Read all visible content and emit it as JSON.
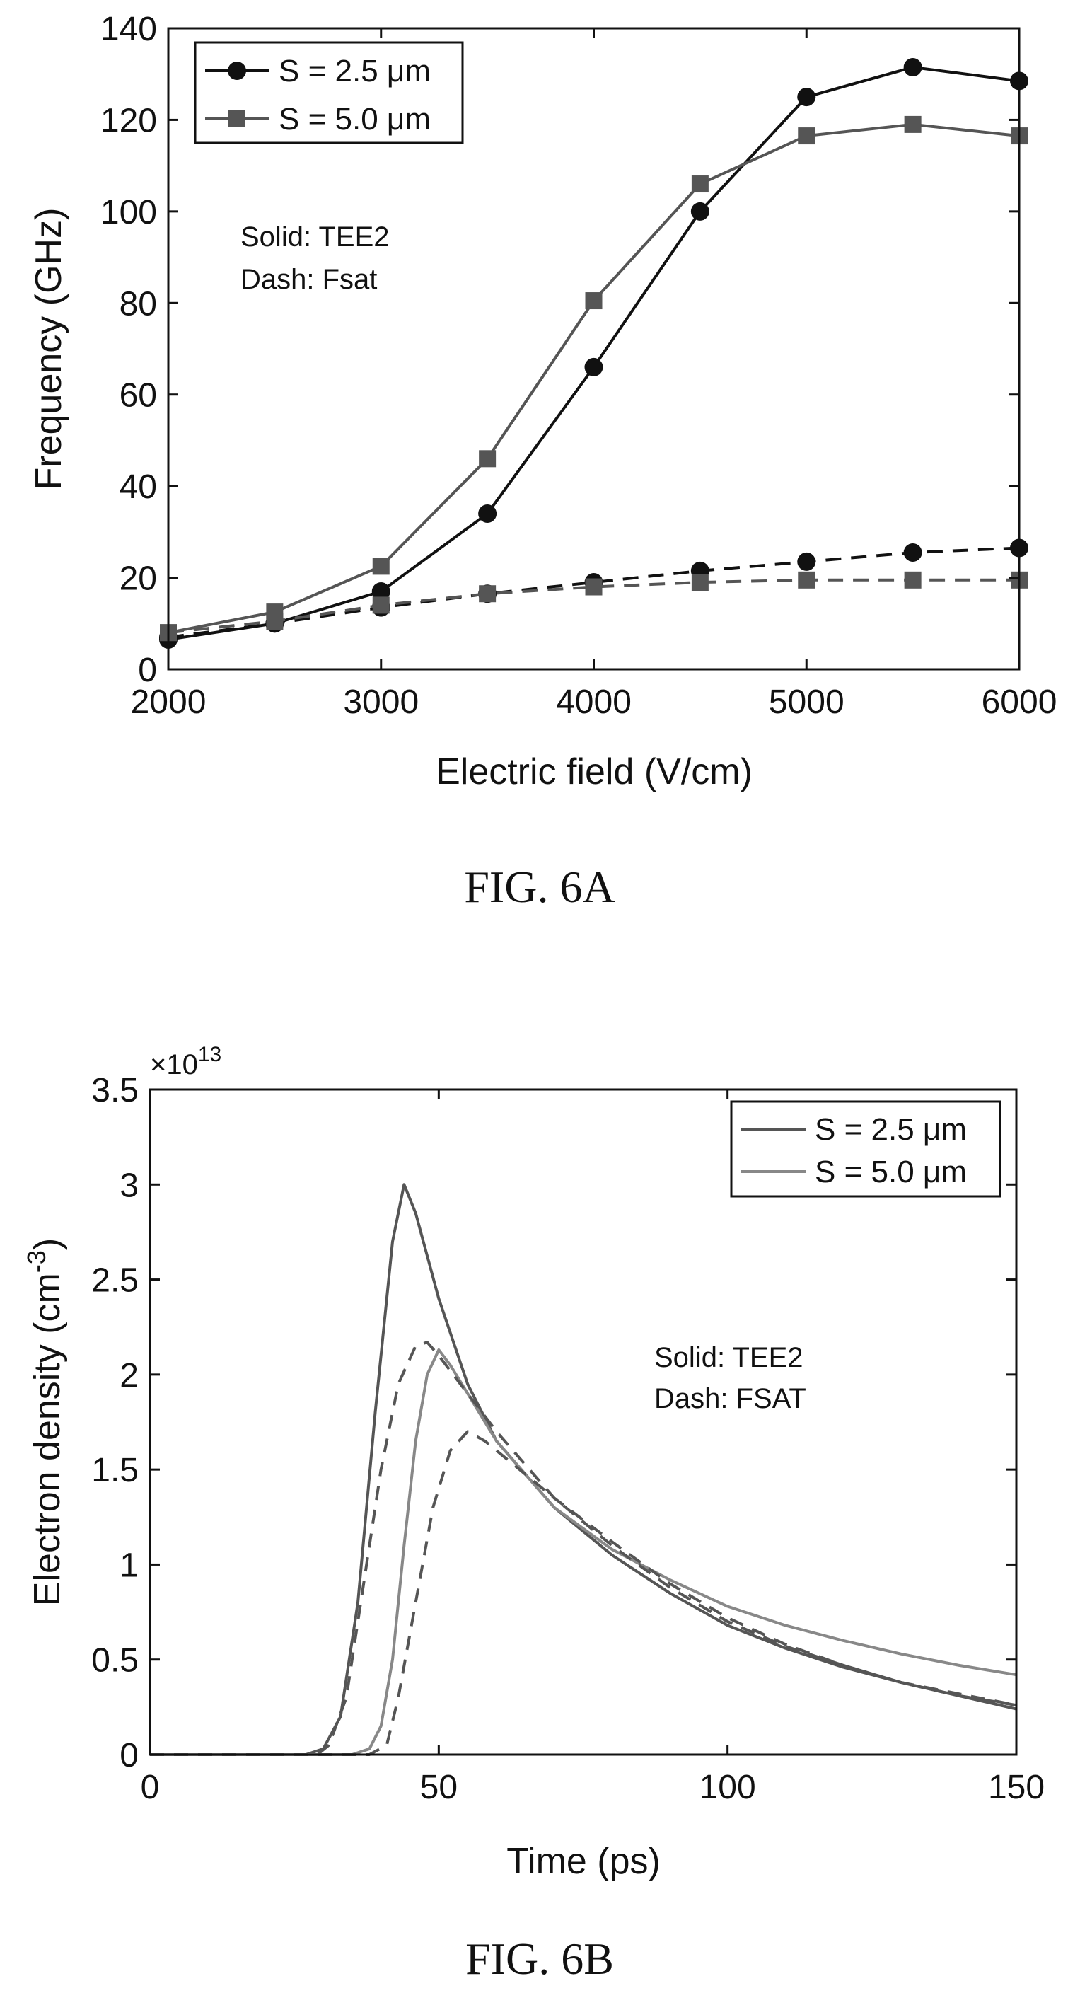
{
  "chart_data": [
    {
      "type": "line",
      "caption": "FIG. 6A",
      "xlabel": "Electric field (V/cm)",
      "ylabel": "Frequency (GHz)",
      "xlim": [
        2000,
        6000
      ],
      "ylim": [
        0,
        140
      ],
      "xticks": [
        "2000",
        "3000",
        "4000",
        "5000",
        "6000"
      ],
      "yticks": [
        "0",
        "20",
        "40",
        "60",
        "80",
        "100",
        "120",
        "140"
      ],
      "x": [
        2000,
        2500,
        3000,
        3500,
        4000,
        4500,
        5000,
        5500,
        6000
      ],
      "annotations": [
        "Solid: TEE2",
        "Dash: Fsat"
      ],
      "legend_position": "top-left",
      "series": [
        {
          "name": "S = 2.5 μm",
          "style": "solid",
          "marker": "circle",
          "color": "#111111",
          "values": [
            6.5,
            10,
            17,
            34,
            66,
            100,
            125,
            131.5,
            128.5
          ]
        },
        {
          "name": "S = 5.0 μm",
          "style": "solid",
          "marker": "square",
          "color": "#555555",
          "values": [
            8,
            12.5,
            22.5,
            46,
            80.5,
            106,
            116.5,
            119,
            116.5
          ]
        },
        {
          "name": "",
          "style": "dash",
          "marker": "circle",
          "color": "#111111",
          "values": [
            7,
            10,
            13.5,
            16.5,
            19,
            21.5,
            23.5,
            25.5,
            26.5
          ]
        },
        {
          "name": "",
          "style": "dash",
          "marker": "square",
          "color": "#555555",
          "values": [
            8,
            10.5,
            14,
            16.5,
            18,
            19,
            19.5,
            19.5,
            19.5
          ]
        }
      ]
    },
    {
      "type": "line",
      "caption": "FIG. 6B",
      "xlabel": "Time (ps)",
      "ylabel": "Electron density (cm",
      "ylabel_sup": "-3",
      "ylabel_close": ")",
      "exponent_base": "×10",
      "exponent_power": "13",
      "xlim": [
        0,
        150
      ],
      "ylim": [
        0,
        3.5
      ],
      "xticks": [
        "0",
        "50",
        "100",
        "150"
      ],
      "yticks": [
        "0",
        "0.5",
        "1",
        "1.5",
        "2",
        "2.5",
        "3",
        "3.5"
      ],
      "annotations": [
        "Solid: TEE2",
        "Dash: FSAT"
      ],
      "legend_position": "top-right",
      "legend": [
        {
          "name": "S = 2.5 μm",
          "color": "#555555"
        },
        {
          "name": "S = 5.0 μm",
          "color": "#888888"
        }
      ],
      "series": [
        {
          "name": "S = 2.5 μm",
          "style": "solid",
          "color": "#555555",
          "points": [
            [
              0,
              0
            ],
            [
              27,
              0
            ],
            [
              30,
              0.03
            ],
            [
              33,
              0.2
            ],
            [
              36,
              0.8
            ],
            [
              39,
              1.8
            ],
            [
              42,
              2.7
            ],
            [
              44,
              3.0
            ],
            [
              46,
              2.85
            ],
            [
              50,
              2.4
            ],
            [
              55,
              1.95
            ],
            [
              60,
              1.65
            ],
            [
              70,
              1.3
            ],
            [
              80,
              1.05
            ],
            [
              90,
              0.85
            ],
            [
              100,
              0.68
            ],
            [
              110,
              0.56
            ],
            [
              120,
              0.46
            ],
            [
              130,
              0.38
            ],
            [
              140,
              0.31
            ],
            [
              150,
              0.24
            ]
          ]
        },
        {
          "name": "S = 5.0 μm",
          "style": "solid",
          "color": "#888888",
          "points": [
            [
              0,
              0
            ],
            [
              35,
              0
            ],
            [
              38,
              0.03
            ],
            [
              40,
              0.15
            ],
            [
              42,
              0.5
            ],
            [
              44,
              1.1
            ],
            [
              46,
              1.65
            ],
            [
              48,
              2.0
            ],
            [
              50,
              2.13
            ],
            [
              52,
              2.05
            ],
            [
              55,
              1.9
            ],
            [
              60,
              1.65
            ],
            [
              70,
              1.3
            ],
            [
              80,
              1.08
            ],
            [
              90,
              0.92
            ],
            [
              100,
              0.78
            ],
            [
              110,
              0.68
            ],
            [
              120,
              0.6
            ],
            [
              130,
              0.53
            ],
            [
              140,
              0.47
            ],
            [
              150,
              0.42
            ]
          ]
        },
        {
          "name": "",
          "style": "dash",
          "color": "#555555",
          "points": [
            [
              0,
              0
            ],
            [
              29,
              0
            ],
            [
              31,
              0.05
            ],
            [
              34,
              0.3
            ],
            [
              37,
              0.9
            ],
            [
              40,
              1.5
            ],
            [
              43,
              1.95
            ],
            [
              46,
              2.15
            ],
            [
              48,
              2.17
            ],
            [
              50,
              2.1
            ],
            [
              55,
              1.9
            ],
            [
              60,
              1.7
            ],
            [
              70,
              1.35
            ],
            [
              80,
              1.1
            ],
            [
              90,
              0.88
            ],
            [
              100,
              0.7
            ],
            [
              110,
              0.57
            ],
            [
              120,
              0.47
            ],
            [
              130,
              0.38
            ],
            [
              140,
              0.32
            ],
            [
              150,
              0.26
            ]
          ]
        },
        {
          "name": "",
          "style": "dash",
          "color": "#555555",
          "points": [
            [
              0,
              0
            ],
            [
              38,
              0
            ],
            [
              41,
              0.05
            ],
            [
              43,
              0.3
            ],
            [
              46,
              0.8
            ],
            [
              49,
              1.3
            ],
            [
              52,
              1.6
            ],
            [
              55,
              1.7
            ],
            [
              58,
              1.65
            ],
            [
              62,
              1.55
            ],
            [
              70,
              1.35
            ],
            [
              80,
              1.12
            ],
            [
              90,
              0.9
            ],
            [
              100,
              0.72
            ],
            [
              110,
              0.58
            ],
            [
              120,
              0.47
            ],
            [
              130,
              0.38
            ],
            [
              140,
              0.31
            ],
            [
              150,
              0.26
            ]
          ]
        }
      ]
    }
  ]
}
